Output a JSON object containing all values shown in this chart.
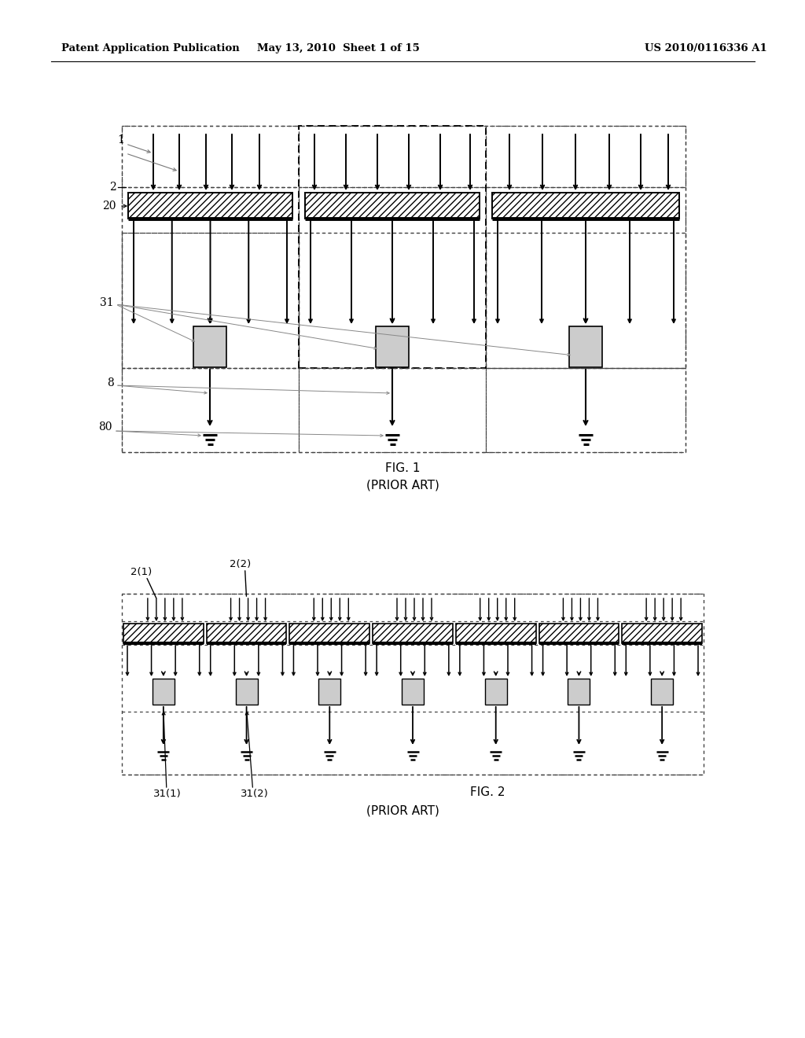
{
  "header_left": "Patent Application Publication",
  "header_mid": "May 13, 2010  Sheet 1 of 15",
  "header_right": "US 2010/0116336 A1",
  "fig1_caption": "FIG. 1",
  "fig1_subcaption": "(PRIOR ART)",
  "fig2_caption": "FIG. 2",
  "fig2_subcaption": "(PRIOR ART)",
  "bg_color": "#ffffff",
  "lc": "#000000",
  "dc": "#444444",
  "gray_face": "#cccccc"
}
